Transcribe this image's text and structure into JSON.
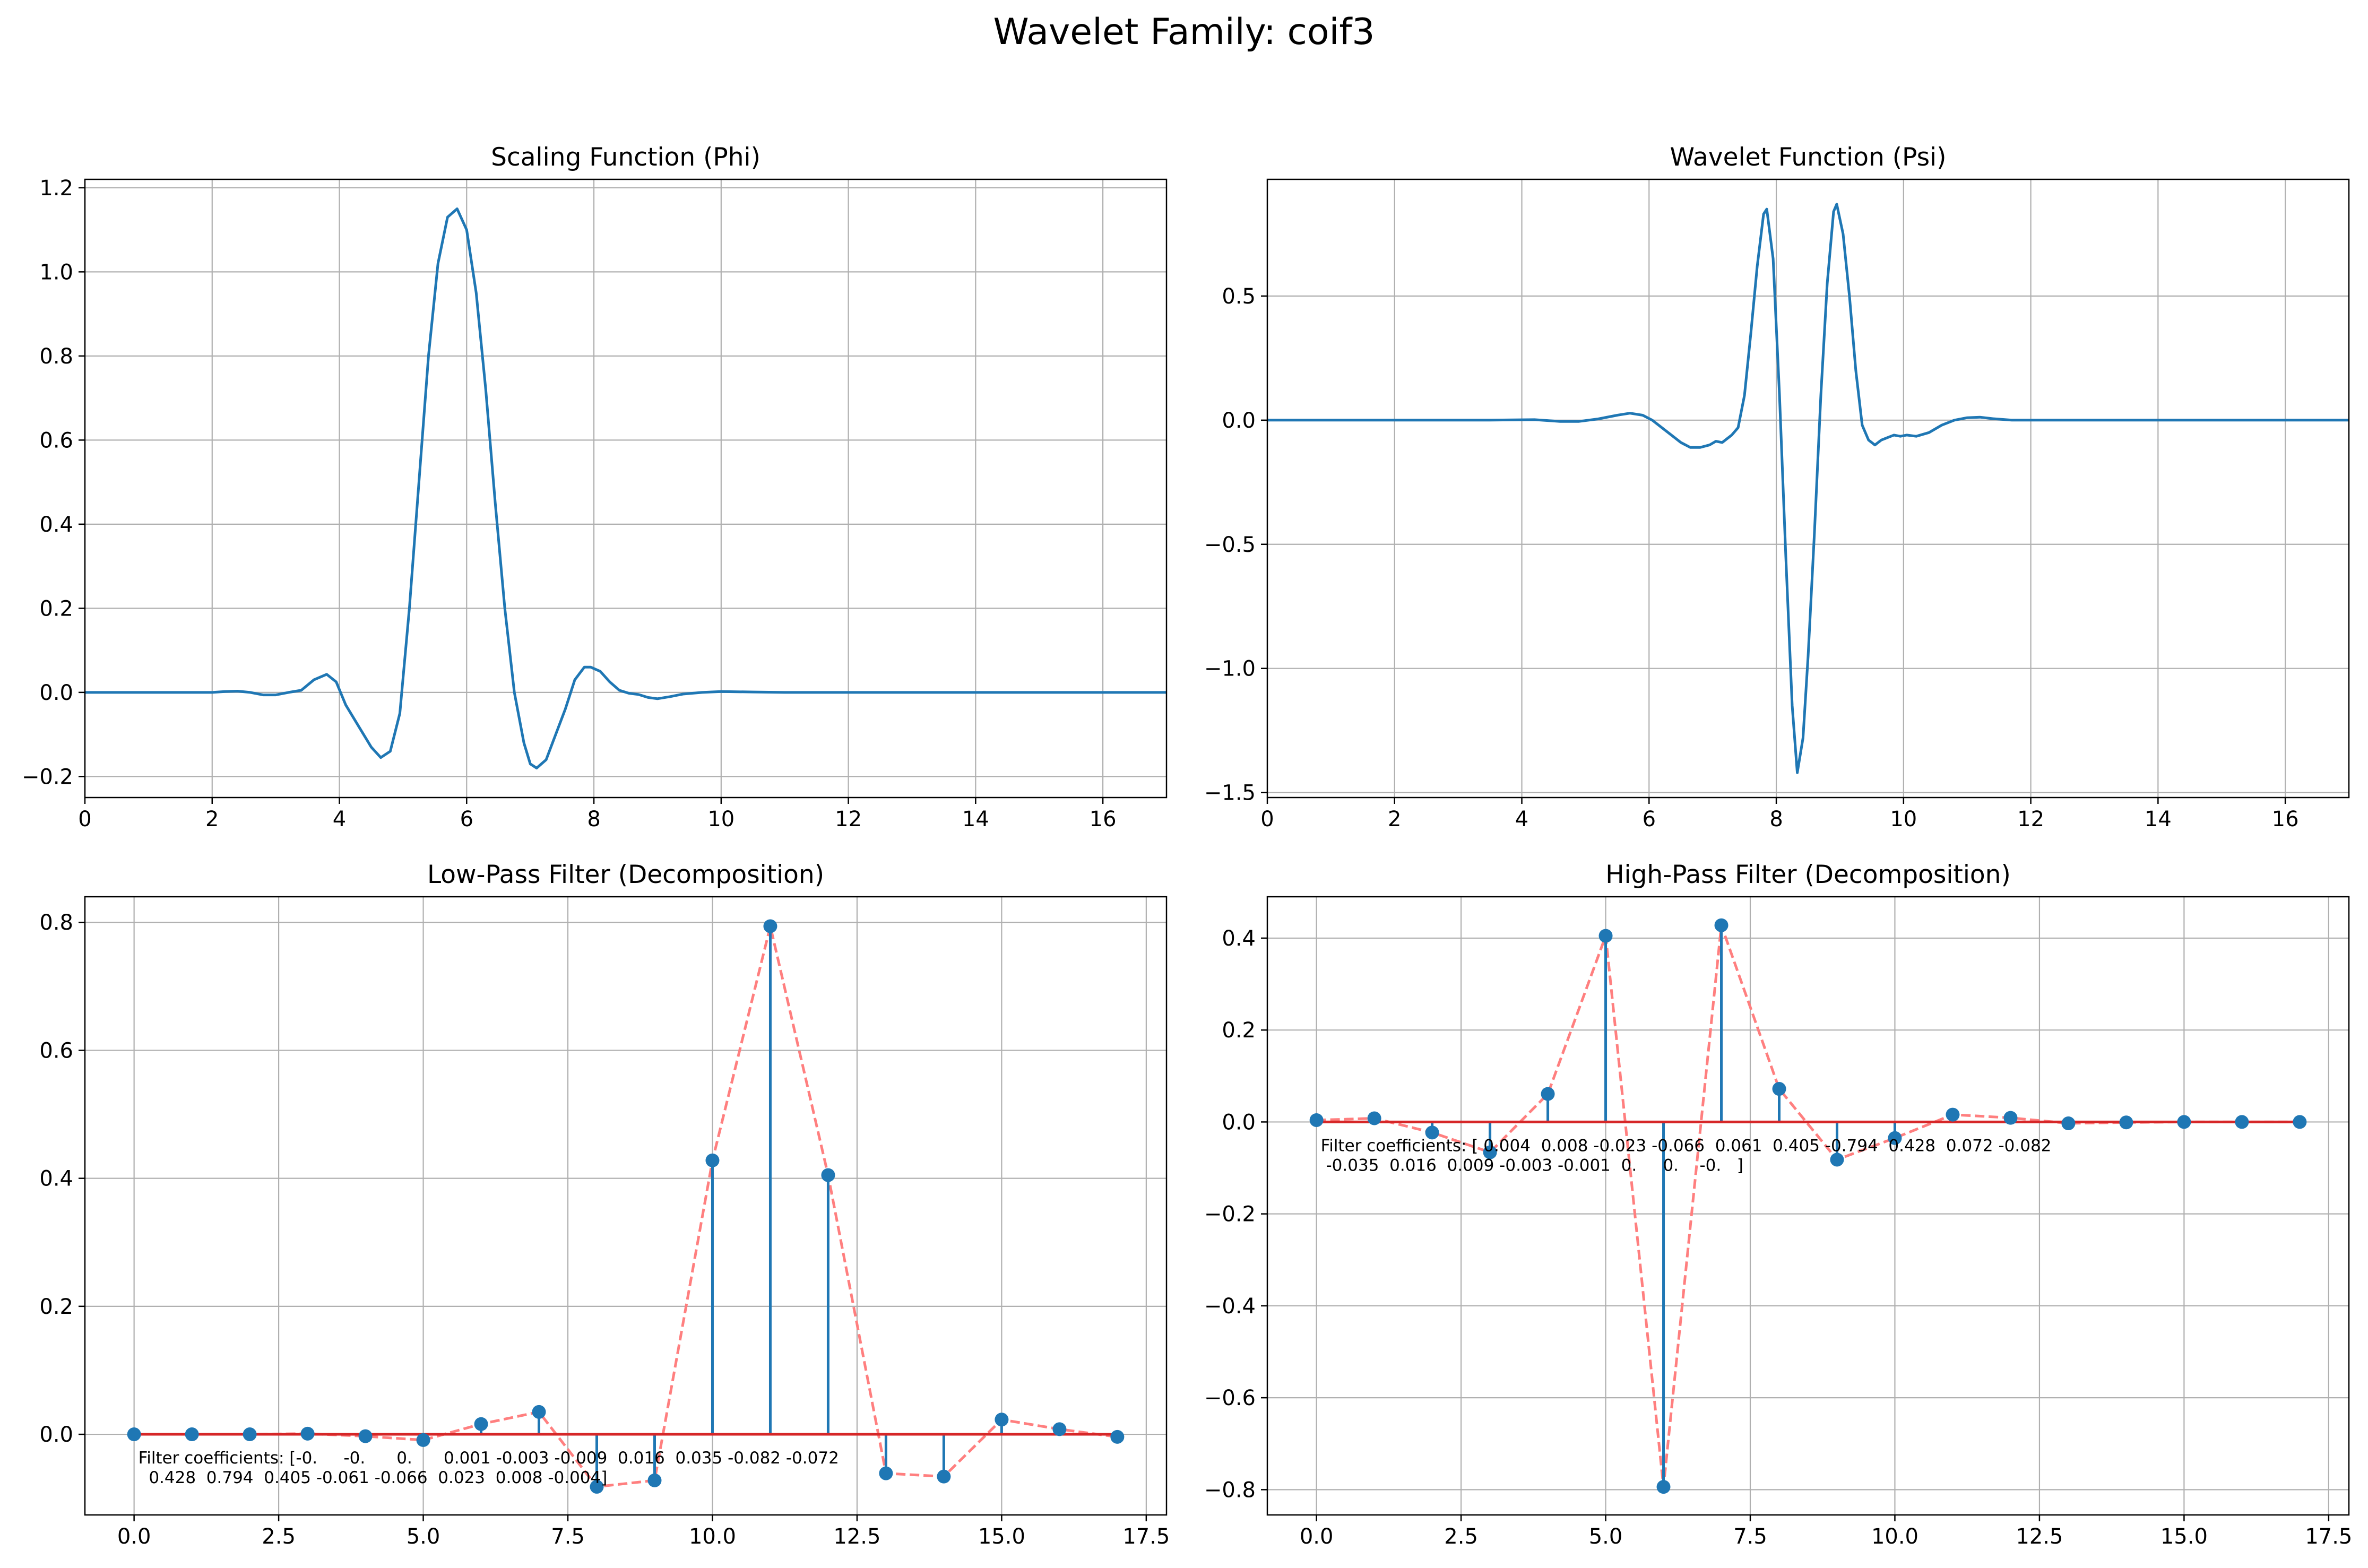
{
  "figure": {
    "suptitle": "Wavelet Family: coif3"
  },
  "chart_data": [
    {
      "type": "line",
      "title": "Scaling Function (Phi)",
      "xlabel": "",
      "ylabel": "",
      "xlim": [
        0,
        17
      ],
      "ylim": [
        -0.25,
        1.22
      ],
      "grid": true,
      "xticks": [
        0,
        2,
        4,
        6,
        8,
        10,
        12,
        14,
        16
      ],
      "xtick_labels": [
        "0",
        "2",
        "4",
        "6",
        "8",
        "10",
        "12",
        "14",
        "16"
      ],
      "yticks": [
        -0.2,
        0.0,
        0.2,
        0.4,
        0.6,
        0.8,
        1.0,
        1.2
      ],
      "ytick_labels": [
        "−0.2",
        "0.0",
        "0.2",
        "0.4",
        "0.6",
        "0.8",
        "1.0",
        "1.2"
      ],
      "series": [
        {
          "color": "#1f77b4",
          "x": [
            0,
            1,
            2,
            2.2,
            2.4,
            2.6,
            2.8,
            3.0,
            3.2,
            3.4,
            3.6,
            3.8,
            3.95,
            4.1,
            4.3,
            4.5,
            4.65,
            4.8,
            4.95,
            5.1,
            5.25,
            5.4,
            5.55,
            5.7,
            5.85,
            6.0,
            6.15,
            6.3,
            6.45,
            6.6,
            6.75,
            6.9,
            7.0,
            7.1,
            7.25,
            7.4,
            7.55,
            7.7,
            7.85,
            7.95,
            8.1,
            8.25,
            8.4,
            8.55,
            8.7,
            8.85,
            9.0,
            9.2,
            9.4,
            9.7,
            10.0,
            10.5,
            11,
            12,
            14,
            17
          ],
          "y": [
            0,
            0,
            0,
            0.002,
            0.003,
            0.0,
            -0.006,
            -0.006,
            0.0,
            0.005,
            0.03,
            0.043,
            0.025,
            -0.03,
            -0.08,
            -0.13,
            -0.155,
            -0.14,
            -0.05,
            0.2,
            0.5,
            0.8,
            1.02,
            1.13,
            1.15,
            1.1,
            0.95,
            0.72,
            0.45,
            0.2,
            0.0,
            -0.12,
            -0.17,
            -0.18,
            -0.16,
            -0.1,
            -0.04,
            0.03,
            0.06,
            0.06,
            0.05,
            0.025,
            0.005,
            -0.002,
            -0.005,
            -0.012,
            -0.015,
            -0.01,
            -0.004,
            0.0,
            0.002,
            0.001,
            0,
            0,
            0,
            0
          ]
        }
      ]
    },
    {
      "type": "line",
      "title": "Wavelet Function (Psi)",
      "xlabel": "",
      "ylabel": "",
      "xlim": [
        0,
        17
      ],
      "ylim": [
        -1.52,
        0.97
      ],
      "grid": true,
      "xticks": [
        0,
        2,
        4,
        6,
        8,
        10,
        12,
        14,
        16
      ],
      "xtick_labels": [
        "0",
        "2",
        "4",
        "6",
        "8",
        "10",
        "12",
        "14",
        "16"
      ],
      "yticks": [
        -1.5,
        -1.0,
        -0.5,
        0.0,
        0.5
      ],
      "ytick_labels": [
        "−1.5",
        "−1.0",
        "−0.5",
        "0.0",
        "0.5"
      ],
      "series": [
        {
          "color": "#1f77b4",
          "x": [
            0,
            2,
            3.5,
            4.2,
            4.6,
            4.9,
            5.2,
            5.5,
            5.7,
            5.9,
            6.05,
            6.2,
            6.35,
            6.5,
            6.65,
            6.8,
            6.95,
            7.05,
            7.15,
            7.3,
            7.4,
            7.5,
            7.6,
            7.7,
            7.8,
            7.85,
            7.95,
            8.05,
            8.15,
            8.25,
            8.33,
            8.42,
            8.5,
            8.6,
            8.7,
            8.8,
            8.9,
            8.95,
            9.05,
            9.15,
            9.25,
            9.35,
            9.45,
            9.55,
            9.65,
            9.75,
            9.85,
            9.95,
            10.05,
            10.2,
            10.4,
            10.6,
            10.8,
            11.0,
            11.2,
            11.4,
            11.7,
            12,
            14,
            17
          ],
          "y": [
            0,
            0,
            0,
            0.002,
            -0.005,
            -0.005,
            0.005,
            0.02,
            0.028,
            0.02,
            0.0,
            -0.03,
            -0.06,
            -0.09,
            -0.11,
            -0.11,
            -0.1,
            -0.085,
            -0.09,
            -0.06,
            -0.03,
            0.1,
            0.35,
            0.62,
            0.83,
            0.85,
            0.65,
            0.1,
            -0.55,
            -1.15,
            -1.42,
            -1.28,
            -0.95,
            -0.45,
            0.1,
            0.55,
            0.84,
            0.87,
            0.75,
            0.5,
            0.2,
            -0.02,
            -0.08,
            -0.1,
            -0.08,
            -0.07,
            -0.06,
            -0.065,
            -0.06,
            -0.065,
            -0.05,
            -0.02,
            0.0,
            0.01,
            0.012,
            0.006,
            0.0,
            0.0,
            0,
            0
          ]
        }
      ]
    },
    {
      "type": "stem",
      "title": "Low-Pass Filter (Decomposition)",
      "xlabel": "",
      "ylabel": "",
      "xlim": [
        -0.85,
        17.85
      ],
      "ylim": [
        -0.126,
        0.84
      ],
      "grid": true,
      "xticks": [
        0,
        2.5,
        5,
        7.5,
        10,
        12.5,
        15,
        17.5
      ],
      "xtick_labels": [
        "0.0",
        "2.5",
        "5.0",
        "7.5",
        "10.0",
        "12.5",
        "15.0",
        "17.5"
      ],
      "yticks": [
        0.0,
        0.2,
        0.4,
        0.6,
        0.8
      ],
      "ytick_labels": [
        "0.0",
        "0.2",
        "0.4",
        "0.6",
        "0.8"
      ],
      "x": [
        0,
        1,
        2,
        3,
        4,
        5,
        6,
        7,
        8,
        9,
        10,
        11,
        12,
        13,
        14,
        15,
        16,
        17
      ],
      "values": [
        -0.0,
        -0.0,
        0.0,
        0.001,
        -0.003,
        -0.009,
        0.016,
        0.035,
        -0.082,
        -0.072,
        0.428,
        0.794,
        0.405,
        -0.061,
        -0.066,
        0.023,
        0.008,
        -0.004
      ],
      "stem_color": "#1f77b4",
      "baseline_color": "#d62728",
      "line_color": "#ff7f7f",
      "annotation_lines": [
        "Filter coefficients: [-0.     -0.      0.      0.001 -0.003 -0.009  0.016  0.035 -0.082 -0.072",
        "  0.428  0.794  0.405 -0.061 -0.066  0.023  0.008 -0.004]"
      ]
    },
    {
      "type": "stem",
      "title": "High-Pass Filter (Decomposition)",
      "xlabel": "",
      "ylabel": "",
      "xlim": [
        -0.85,
        17.85
      ],
      "ylim": [
        -0.855,
        0.49
      ],
      "grid": true,
      "xticks": [
        0,
        2.5,
        5,
        7.5,
        10,
        12.5,
        15,
        17.5
      ],
      "xtick_labels": [
        "0.0",
        "2.5",
        "5.0",
        "7.5",
        "10.0",
        "12.5",
        "15.0",
        "17.5"
      ],
      "yticks": [
        -0.8,
        -0.6,
        -0.4,
        -0.2,
        0.0,
        0.2,
        0.4
      ],
      "ytick_labels": [
        "−0.8",
        "−0.6",
        "−0.4",
        "−0.2",
        "0.0",
        "0.2",
        "0.4"
      ],
      "x": [
        0,
        1,
        2,
        3,
        4,
        5,
        6,
        7,
        8,
        9,
        10,
        11,
        12,
        13,
        14,
        15,
        16,
        17
      ],
      "values": [
        0.004,
        0.008,
        -0.023,
        -0.066,
        0.061,
        0.405,
        -0.794,
        0.428,
        0.072,
        -0.082,
        -0.035,
        0.016,
        0.009,
        -0.003,
        -0.001,
        0.0,
        0.0,
        -0.0
      ],
      "stem_color": "#1f77b4",
      "baseline_color": "#d62728",
      "line_color": "#ff7f7f",
      "annotation_lines": [
        "Filter coefficients: [ 0.004  0.008 -0.023 -0.066  0.061  0.405 -0.794  0.428  0.072 -0.082",
        " -0.035  0.016  0.009 -0.003 -0.001  0.     0.    -0.   ]"
      ]
    }
  ]
}
